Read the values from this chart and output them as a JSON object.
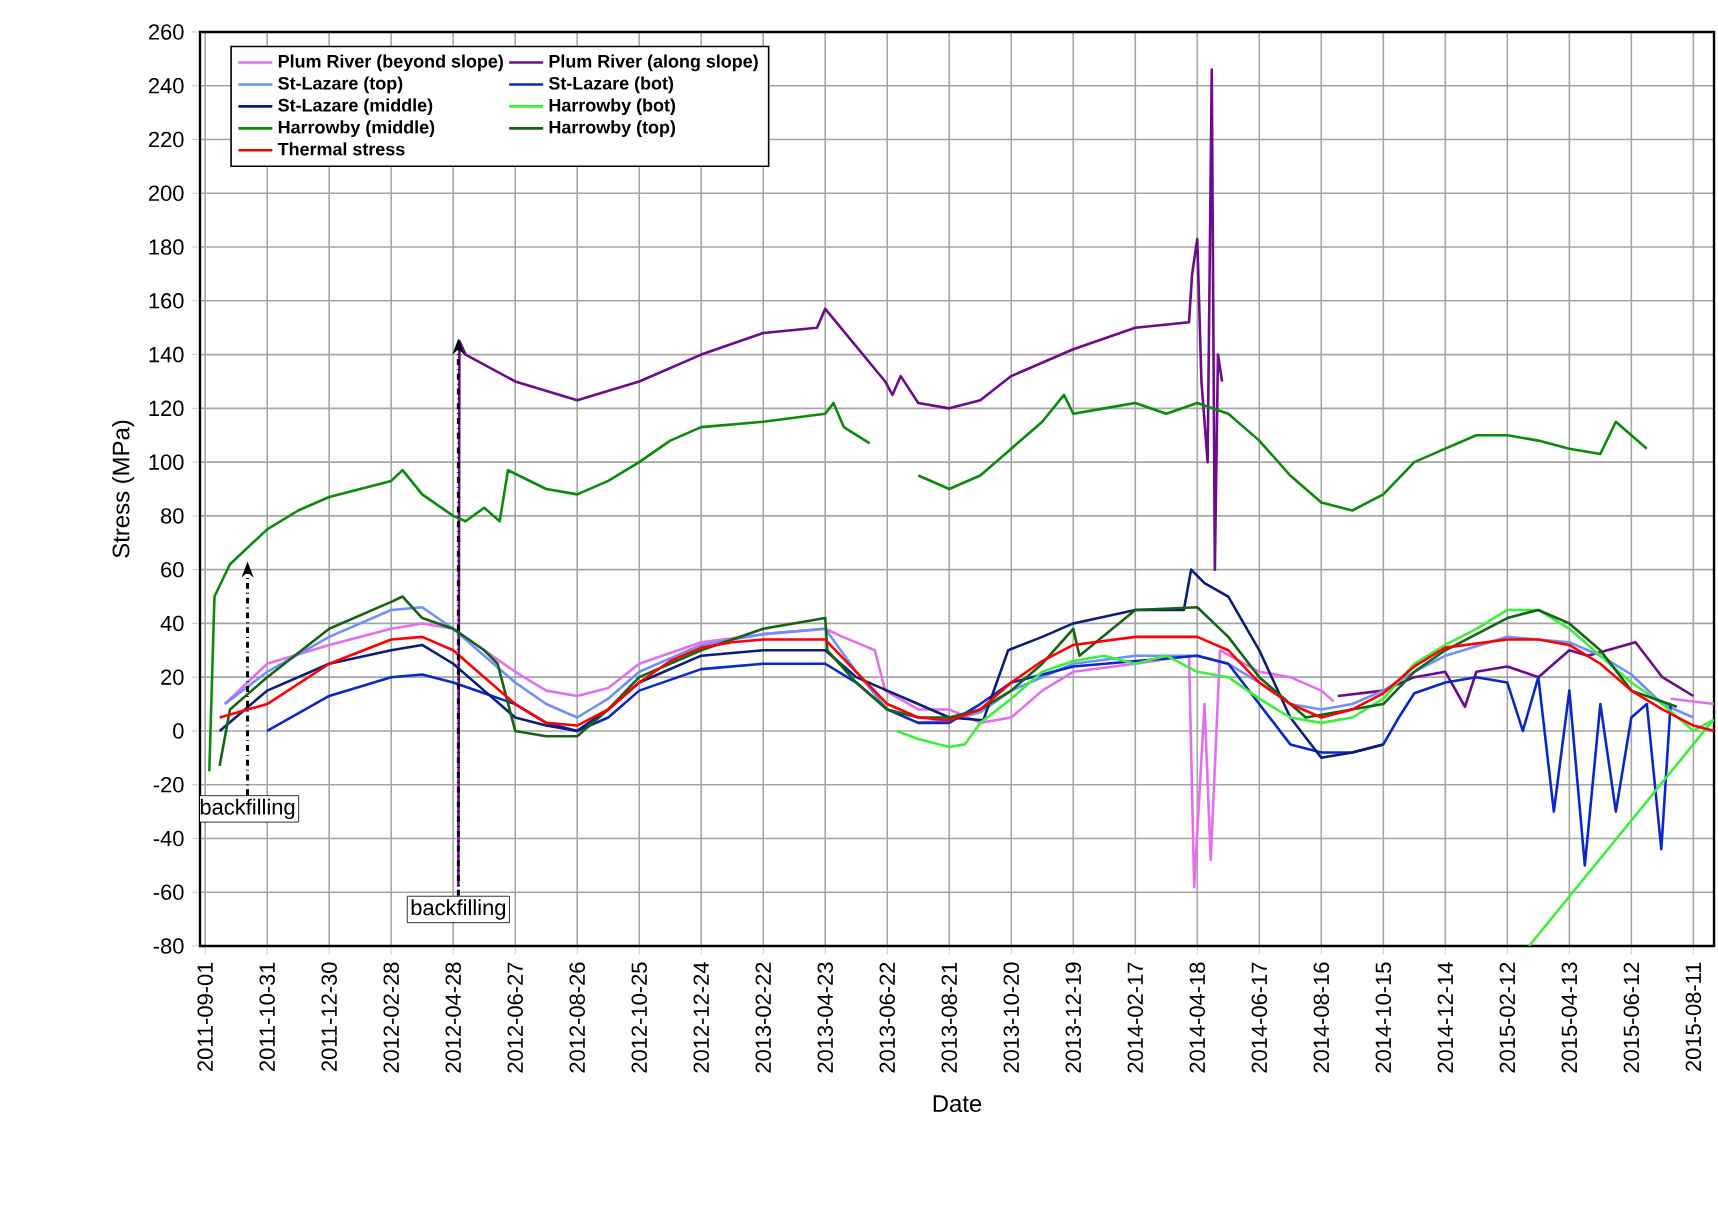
{
  "chart_data": {
    "type": "line",
    "xlabel": "Date",
    "ylabel": "Stress (MPa)",
    "xlim": [
      "2011-08-27",
      "2015-08-31"
    ],
    "ylim": [
      -80,
      260
    ],
    "yticks": [
      -80,
      -60,
      -40,
      -20,
      0,
      20,
      40,
      60,
      80,
      100,
      120,
      140,
      160,
      180,
      200,
      220,
      240,
      260
    ],
    "xticks": [
      "2011-09-01",
      "2011-10-31",
      "2011-12-30",
      "2012-02-28",
      "2012-04-28",
      "2012-06-27",
      "2012-08-26",
      "2012-10-25",
      "2012-12-24",
      "2013-02-22",
      "2013-04-23",
      "2013-06-22",
      "2013-08-21",
      "2013-10-20",
      "2013-12-19",
      "2014-02-17",
      "2014-04-18",
      "2014-06-17",
      "2014-08-16",
      "2014-10-15",
      "2014-12-14",
      "2015-02-12",
      "2015-04-13",
      "2015-06-12",
      "2015-08-11"
    ],
    "grid": true,
    "legend": "top left",
    "marker": "none",
    "line_style": "solid",
    "annotations": [
      {
        "text": "backfilling",
        "x": "2011-10-12",
        "y": 63
      },
      {
        "text": "backfilling",
        "x": "2012-05-03",
        "y": 146
      }
    ],
    "series": [
      {
        "name": "Plum River (beyond slope)",
        "color": "#e36fef",
        "x": [
          "2011-09-20",
          "2011-10-31",
          "2011-12-30",
          "2012-02-28",
          "2012-03-29",
          "2012-04-28",
          "2012-05-28",
          "2012-06-27",
          "2012-07-27",
          "2012-08-26",
          "2012-09-25",
          "2012-10-25",
          "2012-12-24",
          "2013-02-22",
          "2013-04-23",
          "2013-05-10",
          "2013-06-10",
          "2013-06-20",
          "2013-07-22",
          "2013-08-21",
          "2013-09-20",
          "2013-10-20",
          "2013-11-19",
          "2013-12-19",
          "2014-02-17",
          "2014-04-10",
          "2014-04-15",
          "2014-04-25",
          "2014-05-01",
          "2014-05-10",
          "2014-06-17",
          "2014-07-17",
          "2014-08-16",
          "2014-08-28",
          "2015-07-01",
          "2015-07-20",
          "2015-08-31"
        ],
        "values": [
          10,
          25,
          32,
          38,
          40,
          38,
          30,
          22,
          15,
          13,
          16,
          25,
          33,
          36,
          38,
          35,
          30,
          15,
          8,
          8,
          3,
          5,
          15,
          22,
          25,
          28,
          -58,
          10,
          -48,
          30,
          22,
          20,
          15,
          11,
          null,
          12,
          10
        ]
      },
      {
        "name": "Plum River (along slope)",
        "color": "#6e0a8c",
        "x": [
          "2012-05-03",
          "2012-05-04",
          "2012-05-10",
          "2012-06-27",
          "2012-08-26",
          "2012-10-25",
          "2012-12-24",
          "2013-02-22",
          "2013-04-15",
          "2013-04-23",
          "2013-06-20",
          "2013-06-27",
          "2013-07-05",
          "2013-07-22",
          "2013-08-21",
          "2013-09-20",
          "2013-10-20",
          "2013-12-19",
          "2014-02-17",
          "2014-04-10",
          "2014-04-13",
          "2014-04-18",
          "2014-04-22",
          "2014-04-28",
          "2014-05-02",
          "2014-05-05",
          "2014-05-08",
          "2014-05-12",
          "2014-07-01",
          "2014-09-01",
          "2014-10-15",
          "2014-11-14",
          "2014-12-14",
          "2015-01-02",
          "2015-01-13",
          "2015-02-12",
          "2015-03-14",
          "2015-04-13",
          "2015-05-01",
          "2015-06-16",
          "2015-07-12",
          "2015-08-11"
        ],
        "values": [
          -58,
          145,
          140,
          130,
          123,
          130,
          140,
          148,
          150,
          157,
          130,
          125,
          132,
          122,
          120,
          123,
          132,
          142,
          150,
          152,
          170,
          183,
          130,
          100,
          246,
          60,
          140,
          130,
          null,
          13,
          15,
          20,
          22,
          9,
          22,
          24,
          20,
          30,
          28,
          33,
          20,
          13
        ]
      },
      {
        "name": "St-Lazare (top)",
        "color": "#6f8fff",
        "x": [
          "2011-09-20",
          "2011-10-31",
          "2011-12-30",
          "2012-02-28",
          "2012-03-29",
          "2012-04-28",
          "2012-05-28",
          "2012-06-27",
          "2012-07-27",
          "2012-08-26",
          "2012-09-25",
          "2012-10-25",
          "2012-12-24",
          "2013-02-22",
          "2013-04-23",
          "2013-05-23",
          "2013-06-22",
          "2013-07-22",
          "2013-08-21",
          "2013-09-20",
          "2013-10-20",
          "2013-12-19",
          "2014-02-17",
          "2014-04-18",
          "2014-05-18",
          "2014-06-17",
          "2014-07-17",
          "2014-08-16",
          "2014-09-15",
          "2014-10-15",
          "2014-11-14",
          "2014-12-14",
          "2015-02-12",
          "2015-04-13",
          "2015-05-13",
          "2015-06-12",
          "2015-07-12",
          "2015-08-11"
        ],
        "values": [
          10,
          22,
          35,
          45,
          46,
          38,
          28,
          18,
          10,
          5,
          12,
          22,
          32,
          36,
          38,
          22,
          8,
          3,
          4,
          7,
          15,
          25,
          28,
          28,
          25,
          18,
          10,
          8,
          10,
          15,
          22,
          28,
          35,
          33,
          28,
          21,
          10,
          5
        ]
      },
      {
        "name": "St-Lazare (bot)",
        "color": "#0a28c8",
        "x": [
          "2011-10-31",
          "2011-12-30",
          "2012-02-28",
          "2012-03-29",
          "2012-04-28",
          "2012-05-28",
          "2012-06-27",
          "2012-07-27",
          "2012-08-26",
          "2012-09-25",
          "2012-10-25",
          "2012-12-24",
          "2013-02-22",
          "2013-04-23",
          "2013-05-23",
          "2013-06-22",
          "2013-07-22",
          "2013-08-21",
          "2013-09-20",
          "2013-10-20",
          "2013-12-19",
          "2014-02-17",
          "2014-04-18",
          "2014-05-18",
          "2014-06-17",
          "2014-07-17",
          "2014-08-16",
          "2014-09-15",
          "2014-10-15",
          "2014-10-30",
          "2014-11-14",
          "2014-12-14",
          "2015-01-13",
          "2015-02-12",
          "2015-02-27",
          "2015-03-14",
          "2015-03-29",
          "2015-04-13",
          "2015-04-28",
          "2015-05-13",
          "2015-05-28",
          "2015-06-12",
          "2015-06-27",
          "2015-07-11",
          "2015-07-20"
        ],
        "values": [
          0,
          13,
          20,
          21,
          18,
          14,
          10,
          3,
          0,
          5,
          15,
          23,
          25,
          25,
          18,
          8,
          3,
          3,
          10,
          18,
          24,
          26,
          28,
          25,
          10,
          -5,
          -8,
          -8,
          -5,
          5,
          14,
          18,
          20,
          18,
          0,
          20,
          -30,
          15,
          -50,
          10,
          -30,
          5,
          10,
          -44,
          10
        ]
      },
      {
        "name": "St-Lazare (middle)",
        "color": "#0a1e78",
        "x": [
          "2011-09-15",
          "2011-10-31",
          "2011-12-30",
          "2012-02-28",
          "2012-03-29",
          "2012-04-28",
          "2012-05-28",
          "2012-06-27",
          "2012-07-27",
          "2012-08-26",
          "2012-09-25",
          "2012-10-25",
          "2012-12-24",
          "2013-02-22",
          "2013-04-23",
          "2013-05-23",
          "2013-06-22",
          "2013-07-22",
          "2013-08-21",
          "2013-09-23",
          "2013-10-17",
          "2013-11-19",
          "2013-12-19",
          "2014-02-17",
          "2014-04-05",
          "2014-04-12",
          "2014-04-25",
          "2014-05-18",
          "2014-06-17",
          "2014-07-17",
          "2014-08-16",
          "2014-09-15",
          "2014-10-15"
        ],
        "values": [
          0,
          15,
          25,
          30,
          32,
          25,
          15,
          5,
          2,
          0,
          8,
          18,
          28,
          30,
          30,
          20,
          15,
          10,
          5,
          4,
          30,
          35,
          40,
          45,
          45,
          60,
          55,
          50,
          30,
          5,
          -10,
          -8,
          -5
        ]
      },
      {
        "name": "Harrowby (bot)",
        "color": "#3cf03c",
        "x": [
          "2013-07-01",
          "2013-07-22",
          "2013-08-21",
          "2013-09-05",
          "2013-09-20",
          "2013-10-20",
          "2013-11-19",
          "2013-12-19",
          "2014-01-18",
          "2014-02-17",
          "2014-03-19",
          "2014-04-18",
          "2014-05-18",
          "2014-06-17",
          "2014-07-17",
          "2014-08-16",
          "2014-09-15",
          "2014-10-15",
          "2014-11-14",
          "2014-12-14",
          "2015-01-13",
          "2015-02-12",
          "2015-03-14",
          "2015-04-13",
          "2015-05-13",
          "2015-06-12",
          "2015-07-12",
          "2015-08-11",
          "2015-08-30",
          "2015-03-05"
        ],
        "values": [
          0,
          -3,
          -6,
          -5,
          3,
          12,
          22,
          26,
          28,
          25,
          28,
          22,
          20,
          12,
          5,
          3,
          5,
          12,
          25,
          32,
          38,
          45,
          45,
          38,
          28,
          18,
          10,
          0,
          4,
          -80
        ]
      },
      {
        "name": "Harrowby (middle)",
        "color": "#0a8c0a",
        "x": [
          "2011-09-05",
          "2011-09-10",
          "2011-09-25",
          "2011-10-31",
          "2011-11-30",
          "2011-12-30",
          "2012-02-28",
          "2012-03-10",
          "2012-03-29",
          "2012-04-28",
          "2012-05-10",
          "2012-05-28",
          "2012-06-12",
          "2012-06-20",
          "2012-07-27",
          "2012-08-26",
          "2012-09-25",
          "2012-10-25",
          "2012-11-24",
          "2012-12-24",
          "2013-02-22",
          "2013-04-23",
          "2013-05-01",
          "2013-05-11",
          "2013-06-05",
          "2013-06-20",
          "2013-07-22",
          "2013-08-21",
          "2013-09-20",
          "2013-10-20",
          "2013-11-19",
          "2013-12-10",
          "2013-12-19",
          "2014-01-18",
          "2014-02-17",
          "2014-03-19",
          "2014-04-18",
          "2014-05-18",
          "2014-06-17",
          "2014-07-17",
          "2014-08-16",
          "2014-09-15",
          "2014-10-15",
          "2014-11-14",
          "2014-12-14",
          "2015-01-13",
          "2015-02-12",
          "2015-03-14",
          "2015-04-13",
          "2015-05-13",
          "2015-05-28",
          "2015-06-12",
          "2015-06-27"
        ],
        "values": [
          -15,
          50,
          62,
          75,
          82,
          87,
          93,
          97,
          88,
          80,
          78,
          83,
          78,
          97,
          90,
          88,
          93,
          100,
          108,
          113,
          115,
          118,
          122,
          113,
          107,
          null,
          95,
          90,
          95,
          105,
          115,
          125,
          118,
          120,
          122,
          118,
          122,
          118,
          108,
          95,
          85,
          82,
          88,
          100,
          105,
          110,
          110,
          108,
          105,
          103,
          115,
          110,
          105
        ]
      },
      {
        "name": "Harrowby (top)",
        "color": "#146414",
        "x": [
          "2011-09-15",
          "2011-09-25",
          "2011-10-31",
          "2011-12-30",
          "2012-02-28",
          "2012-03-10",
          "2012-03-29",
          "2012-04-28",
          "2012-05-28",
          "2012-06-10",
          "2012-06-27",
          "2012-07-27",
          "2012-08-26",
          "2012-09-25",
          "2012-10-25",
          "2012-12-24",
          "2013-02-22",
          "2013-04-23",
          "2013-04-25",
          "2013-05-23",
          "2013-06-22",
          "2013-07-22",
          "2013-08-21",
          "2013-09-20",
          "2013-10-20",
          "2013-11-19",
          "2013-12-19",
          "2013-12-25",
          "2014-02-17",
          "2014-04-18",
          "2014-05-18",
          "2014-06-17",
          "2014-07-17",
          "2014-08-01",
          "2014-10-15",
          "2014-11-14",
          "2014-12-14",
          "2015-02-12",
          "2015-03-14",
          "2015-04-13",
          "2015-05-13",
          "2015-06-12",
          "2015-07-26"
        ],
        "values": [
          -13,
          8,
          20,
          38,
          48,
          50,
          42,
          38,
          30,
          25,
          0,
          -2,
          -2,
          8,
          20,
          30,
          38,
          42,
          30,
          18,
          8,
          5,
          5,
          8,
          15,
          25,
          38,
          28,
          45,
          46,
          35,
          20,
          10,
          5,
          10,
          22,
          30,
          42,
          45,
          40,
          30,
          15,
          9
        ]
      },
      {
        "name": "Thermal stress",
        "color": "#ff0000",
        "x": [
          "2011-09-15",
          "2011-10-31",
          "2011-12-30",
          "2012-02-28",
          "2012-03-29",
          "2012-04-28",
          "2012-05-28",
          "2012-06-27",
          "2012-07-27",
          "2012-08-26",
          "2012-09-25",
          "2012-10-25",
          "2012-11-24",
          "2012-12-24",
          "2013-01-23",
          "2013-02-22",
          "2013-04-23",
          "2013-05-23",
          "2013-06-22",
          "2013-07-22",
          "2013-08-21",
          "2013-09-20",
          "2013-10-20",
          "2013-11-19",
          "2013-12-19",
          "2014-02-17",
          "2014-04-18",
          "2014-05-18",
          "2014-06-17",
          "2014-07-17",
          "2014-08-16",
          "2014-09-15",
          "2014-10-15",
          "2014-11-14",
          "2014-12-14",
          "2015-02-12",
          "2015-03-14",
          "2015-04-13",
          "2015-05-13",
          "2015-06-12",
          "2015-07-12",
          "2015-08-11",
          "2015-08-31"
        ],
        "values": [
          5,
          10,
          25,
          34,
          35,
          30,
          20,
          10,
          3,
          2,
          8,
          18,
          26,
          31,
          33,
          34,
          34,
          22,
          10,
          5,
          4,
          8,
          18,
          26,
          32,
          35,
          35,
          30,
          18,
          10,
          5,
          8,
          14,
          24,
          31,
          34,
          34,
          32,
          25,
          15,
          8,
          2,
          0
        ]
      }
    ]
  }
}
